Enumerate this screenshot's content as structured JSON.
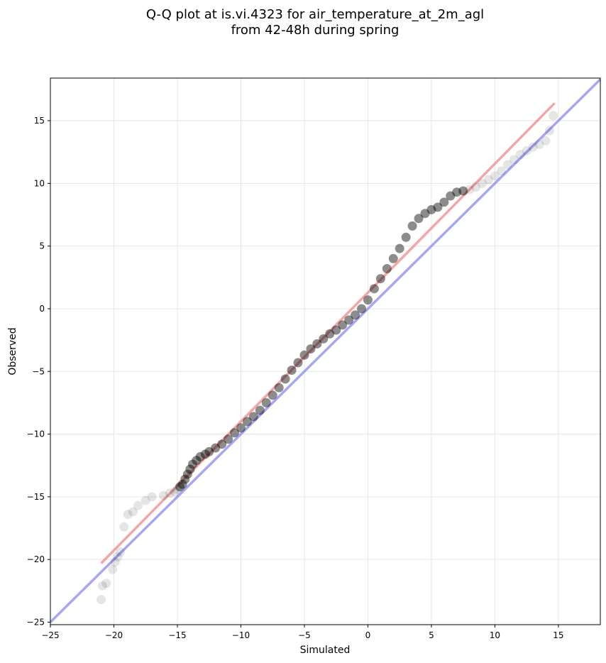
{
  "chart_data": {
    "type": "scatter",
    "title_line1": "Q-Q plot at is.vi.4323 for air_temperature_at_2m_agl",
    "title_line2": "from 42-48h during spring",
    "xlabel": "Simulated",
    "ylabel": "Observed",
    "xlim": [
      -25,
      18.3
    ],
    "ylim": [
      -25.2,
      18.4
    ],
    "xticks": [
      -25,
      -20,
      -15,
      -10,
      -5,
      0,
      5,
      10,
      15
    ],
    "yticks": [
      -25,
      -20,
      -15,
      -10,
      -5,
      0,
      5,
      10,
      15
    ],
    "xtick_labels": [
      "−25",
      "−20",
      "−15",
      "−10",
      "−5",
      "0",
      "5",
      "10",
      "15"
    ],
    "ytick_labels": [
      "−25",
      "−20",
      "−15",
      "−10",
      "−5",
      "0",
      "5",
      "10",
      "15"
    ],
    "grid": true,
    "colors": {
      "points": "#000000",
      "fit_line": "#f08080",
      "identity_line": "#8080f0",
      "grid": "#e6e6e6"
    },
    "fit_line": {
      "x": [
        -21,
        14.7
      ],
      "y": [
        -20.3,
        16.4
      ]
    },
    "identity_line": {
      "x": [
        -25,
        18.3
      ],
      "y": [
        -25,
        18.3
      ]
    },
    "quantiles": {
      "x": [
        -21,
        -20.9,
        -20.6,
        -20.1,
        -19.9,
        -19.7,
        -19.5,
        -19.2,
        -18.9,
        -18.5,
        -18.1,
        -17.5,
        -17,
        -16.1,
        -15.6,
        -15.2,
        -15,
        -14.8,
        -14.6,
        -14.4,
        -14.2,
        -14,
        -13.8,
        -13.5,
        -13.2,
        -12.8,
        -12.5,
        -12,
        -11.5,
        -11,
        -10.5,
        -10,
        -9.5,
        -9,
        -8.5,
        -8,
        -7.5,
        -7,
        -6.5,
        -6,
        -5.5,
        -5,
        -4.5,
        -4,
        -3.5,
        -3,
        -2.5,
        -2,
        -1.5,
        -1,
        -0.5,
        0,
        0.5,
        1,
        1.5,
        2,
        2.5,
        3,
        3.5,
        4,
        4.5,
        5,
        5.5,
        6,
        6.5,
        7,
        7.5,
        8,
        8.5,
        9,
        9.5,
        10,
        10.5,
        11,
        11.5,
        12,
        12.5,
        13,
        13.5,
        14,
        14.3,
        14.6
      ],
      "y": [
        -23.2,
        -22.1,
        -21.9,
        -20.8,
        -20.2,
        -19.8,
        -19.4,
        -17.4,
        -16.4,
        -16.2,
        -15.7,
        -15.3,
        -15.0,
        -14.9,
        -14.7,
        -14.6,
        -14.4,
        -14.2,
        -14.0,
        -13.6,
        -13.2,
        -12.8,
        -12.4,
        -12.1,
        -11.8,
        -11.6,
        -11.4,
        -11.1,
        -10.8,
        -10.4,
        -9.9,
        -9.5,
        -9.0,
        -8.6,
        -8.1,
        -7.5,
        -6.9,
        -6.3,
        -5.6,
        -4.9,
        -4.3,
        -3.7,
        -3.2,
        -2.8,
        -2.4,
        -2.0,
        -1.7,
        -1.3,
        -0.9,
        -0.5,
        0,
        0.7,
        1.6,
        2.4,
        3.2,
        4.0,
        4.8,
        5.7,
        6.6,
        7.2,
        7.6,
        7.9,
        8.1,
        8.5,
        9.0,
        9.3,
        9.4,
        9.5,
        9.7,
        10.0,
        10.3,
        10.6,
        11.0,
        11.5,
        11.9,
        12.3,
        12.6,
        12.9,
        13.1,
        13.4,
        14.2,
        15.4
      ]
    }
  }
}
